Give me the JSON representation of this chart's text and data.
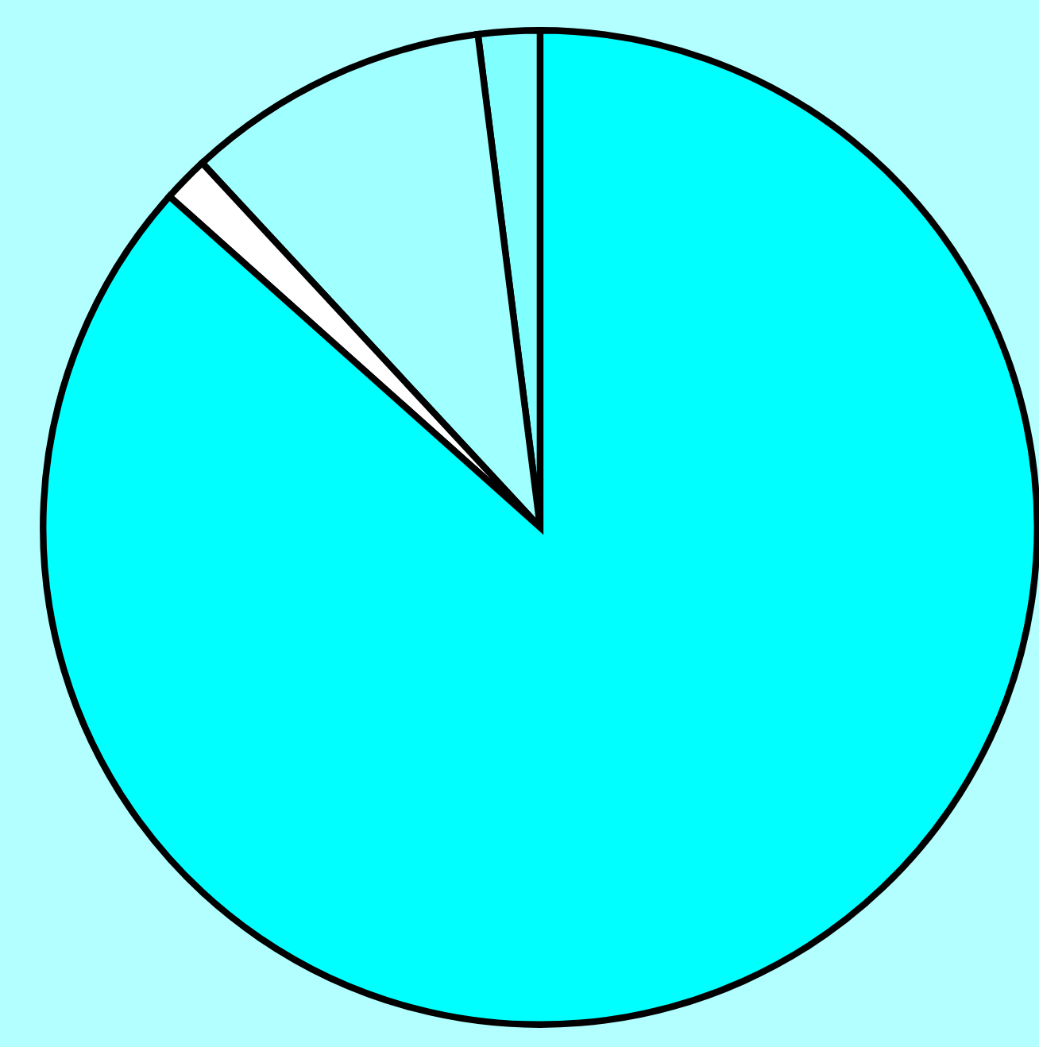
{
  "chart_data": {
    "type": "pie",
    "categories": [
      null,
      null,
      null,
      null
    ],
    "values": [
      2.0,
      9.9,
      1.5,
      86.6
    ],
    "colors": [
      "#80ffff",
      "#a0ffff",
      "#ffffff",
      "#00ffff"
    ]
  }
}
